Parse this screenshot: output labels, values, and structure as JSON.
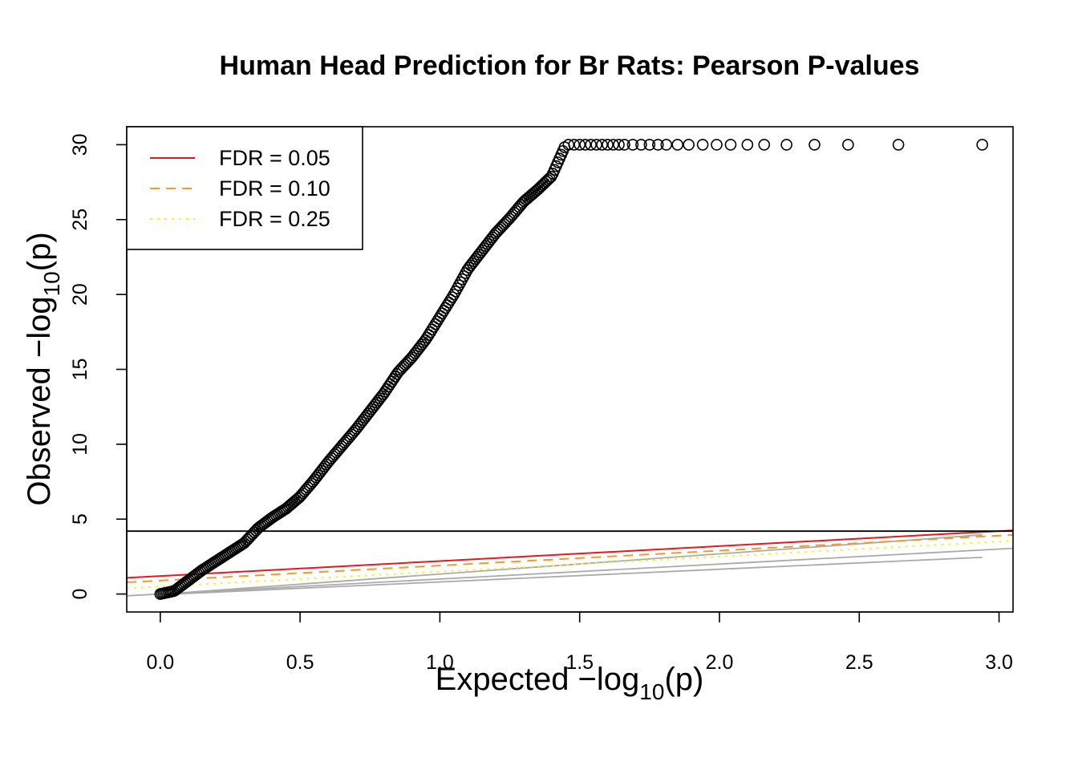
{
  "chart_data": {
    "type": "scatter",
    "title": "Human Head Prediction for Br Rats: Pearson P-values",
    "xlabel": {
      "prefix": "Expected  −log",
      "sub": "10",
      "suffix": "(p)"
    },
    "ylabel": {
      "prefix": "Observed  −log",
      "sub": "10",
      "suffix": "(p)"
    },
    "xlim": [
      -0.12,
      3.05
    ],
    "ylim": [
      -1.2,
      31.2
    ],
    "xticks": [
      "0.0",
      "0.5",
      "1.0",
      "1.5",
      "2.0",
      "2.5",
      "3.0"
    ],
    "yticks": [
      "0",
      "5",
      "10",
      "15",
      "20",
      "25",
      "30"
    ],
    "grid": false,
    "legend": {
      "placement": "top-left",
      "entries": [
        {
          "label": "FDR = 0.05",
          "color": "#e41a1c",
          "dash": "solid"
        },
        {
          "label": "FDR = 0.10",
          "color": "#f39a28",
          "dash": "dashed"
        },
        {
          "label": "FDR = 0.25",
          "color": "#f5f03a",
          "dash": "dotted"
        }
      ]
    },
    "threshold_hline": {
      "y": 4.2,
      "color": "#000000"
    },
    "fdr_lines": [
      {
        "name": "FDR = 0.05",
        "color": "#e41a1c",
        "dash": "solid",
        "intercept": 1.2,
        "slope": 1.0
      },
      {
        "name": "FDR = 0.10",
        "color": "#f39a28",
        "dash": "dashed",
        "intercept": 0.9,
        "slope": 1.0
      },
      {
        "name": "FDR = 0.25",
        "color": "#f5f03a",
        "dash": "dotted",
        "intercept": 0.5,
        "slope": 1.0
      }
    ],
    "reference_lines": [
      {
        "color": "#aaaaaa",
        "points": [
          [
            -0.12,
            -0.12
          ],
          [
            3.05,
            3.05
          ]
        ]
      },
      {
        "color": "#aaaaaa",
        "points": [
          [
            0.05,
            0.0
          ],
          [
            2.94,
            2.45
          ]
        ]
      },
      {
        "color": "#aaaaaa",
        "points": [
          [
            0.05,
            0.05
          ],
          [
            2.94,
            3.95
          ]
        ]
      }
    ],
    "series": [
      {
        "marker": "open-circle",
        "color": "#000000",
        "curve": [
          [
            0.0,
            0.0
          ],
          [
            0.05,
            0.2
          ],
          [
            0.1,
            0.9
          ],
          [
            0.15,
            1.6
          ],
          [
            0.2,
            2.2
          ],
          [
            0.25,
            2.8
          ],
          [
            0.3,
            3.4
          ],
          [
            0.35,
            4.4
          ],
          [
            0.4,
            5.1
          ],
          [
            0.45,
            5.7
          ],
          [
            0.5,
            6.5
          ],
          [
            0.55,
            7.6
          ],
          [
            0.6,
            8.8
          ],
          [
            0.65,
            9.9
          ],
          [
            0.7,
            11.0
          ],
          [
            0.75,
            12.2
          ],
          [
            0.8,
            13.4
          ],
          [
            0.85,
            14.8
          ],
          [
            0.9,
            15.8
          ],
          [
            0.95,
            17.0
          ],
          [
            1.0,
            18.5
          ],
          [
            1.05,
            20.0
          ],
          [
            1.1,
            21.7
          ],
          [
            1.15,
            22.9
          ],
          [
            1.2,
            24.1
          ],
          [
            1.25,
            25.1
          ],
          [
            1.3,
            26.2
          ],
          [
            1.35,
            27.0
          ],
          [
            1.4,
            27.9
          ],
          [
            1.45,
            30.0
          ]
        ],
        "tail_points": [
          [
            1.46,
            30
          ],
          [
            1.48,
            30
          ],
          [
            1.5,
            30
          ],
          [
            1.52,
            30
          ],
          [
            1.54,
            30
          ],
          [
            1.56,
            30
          ],
          [
            1.58,
            30
          ],
          [
            1.6,
            30
          ],
          [
            1.62,
            30
          ],
          [
            1.64,
            30
          ],
          [
            1.66,
            30
          ],
          [
            1.69,
            30
          ],
          [
            1.72,
            30
          ],
          [
            1.75,
            30
          ],
          [
            1.78,
            30
          ],
          [
            1.81,
            30
          ],
          [
            1.85,
            30
          ],
          [
            1.89,
            30
          ],
          [
            1.94,
            30
          ],
          [
            1.99,
            30
          ],
          [
            2.04,
            30
          ],
          [
            2.1,
            30
          ],
          [
            2.16,
            30
          ],
          [
            2.24,
            30
          ],
          [
            2.34,
            30
          ],
          [
            2.46,
            30
          ],
          [
            2.64,
            30
          ],
          [
            2.94,
            30
          ]
        ]
      }
    ]
  }
}
